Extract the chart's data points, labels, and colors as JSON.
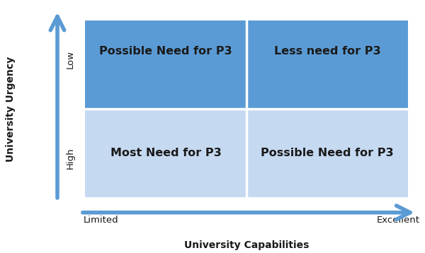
{
  "quadrant_labels": {
    "top_left": "Possible Need for P3",
    "top_right": "Less need for P3",
    "bottom_left": "Most Need for P3",
    "bottom_right": "Possible Need for P3"
  },
  "x_axis_label": "University Capabilities",
  "y_axis_label": "University Urgency",
  "x_tick_left": "Limited",
  "x_tick_right": "Excellent",
  "y_tick_bottom": "High",
  "y_tick_top": "Low",
  "color_top": "#5b9bd5",
  "color_bottom": "#c5d9f1",
  "divider_color": "#ffffff",
  "label_color": "#1a1a1a",
  "arrow_color": "#5b9bd5",
  "label_fontsize": 11.5,
  "axis_label_fontsize": 10,
  "tick_fontsize": 9.5,
  "figsize": [
    6.0,
    3.58
  ],
  "dpi": 100
}
